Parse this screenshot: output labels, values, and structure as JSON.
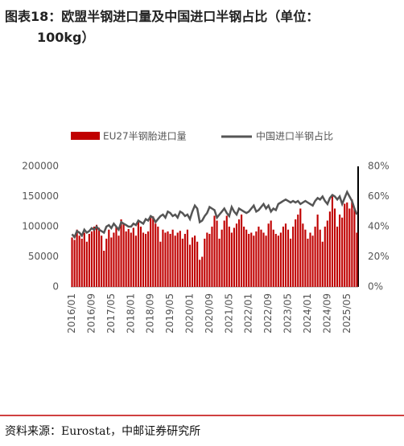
{
  "chart_data": {
    "type": "bar-line",
    "title": [
      "图表18：欧盟半钢进口量及中国进口半钢占比（单位：",
      "100kg）"
    ],
    "source": "资料来源：Eurostat，中邮证券研究所",
    "categories": [
      "2016/01",
      null,
      null,
      null,
      null,
      null,
      null,
      null,
      "2016/09",
      null,
      null,
      null,
      null,
      null,
      null,
      null,
      "2017/05",
      null,
      null,
      null,
      null,
      null,
      null,
      null,
      "2018/01",
      null,
      null,
      null,
      null,
      null,
      null,
      null,
      "2018/09",
      null,
      null,
      null,
      null,
      null,
      null,
      null,
      "2019/05",
      null,
      null,
      null,
      null,
      null,
      null,
      null,
      "2020/01",
      null,
      null,
      null,
      null,
      null,
      null,
      null,
      "2020/09",
      null,
      null,
      null,
      null,
      null,
      null,
      null,
      "2021/05",
      null,
      null,
      null,
      null,
      null,
      null,
      null,
      "2022/01",
      null,
      null,
      null,
      null,
      null,
      null,
      null,
      "2022/09",
      null,
      null,
      null,
      null,
      null,
      null,
      null,
      "2023/05",
      null,
      null,
      null,
      null,
      null,
      null,
      null,
      "2024/01",
      null,
      null,
      null,
      null,
      null,
      null,
      null,
      "2024/09",
      null,
      null,
      null,
      null,
      null,
      null,
      null,
      "2025/05",
      null,
      null,
      null,
      null
    ],
    "series": [
      {
        "name": "EU27半钢胎进口量",
        "color": "#c00000",
        "values": [
          82000,
          78000,
          95000,
          85000,
          80000,
          90000,
          75000,
          88000,
          92000,
          100000,
          103000,
          98000,
          85000,
          60000,
          80000,
          95000,
          82000,
          90000,
          100000,
          85000,
          112000,
          105000,
          92000,
          96000,
          90000,
          98000,
          85000,
          110000,
          100000,
          90000,
          88000,
          92000,
          115000,
          117000,
          105000,
          100000,
          75000,
          95000,
          90000,
          92000,
          88000,
          95000,
          85000,
          90000,
          93000,
          80000,
          88000,
          95000,
          70000,
          82000,
          85000,
          75000,
          45000,
          50000,
          80000,
          90000,
          88000,
          100000,
          118000,
          110000,
          80000,
          95000,
          110000,
          118000,
          100000,
          90000,
          98000,
          105000,
          112000,
          120000,
          100000,
          95000,
          88000,
          90000,
          85000,
          92000,
          100000,
          95000,
          90000,
          85000,
          105000,
          110000,
          95000,
          88000,
          85000,
          90000,
          100000,
          105000,
          95000,
          80000,
          100000,
          112000,
          120000,
          130000,
          105000,
          95000,
          80000,
          90000,
          85000,
          100000,
          120000,
          95000,
          75000,
          100000,
          110000,
          125000,
          150000,
          130000,
          100000,
          120000,
          115000,
          138000,
          140000,
          130000,
          145000,
          130000,
          90000
        ]
      },
      {
        "name": "中国进口半钢占比",
        "color": "#555555",
        "axis": "y2",
        "values": [
          35,
          33,
          37,
          36,
          34,
          38,
          36,
          37,
          39,
          38,
          40,
          38,
          37,
          36,
          40,
          41,
          39,
          42,
          40,
          38,
          43,
          42,
          41,
          40,
          40,
          42,
          41,
          44,
          43,
          42,
          45,
          44,
          47,
          46,
          43,
          45,
          47,
          48,
          46,
          50,
          49,
          47,
          48,
          46,
          50,
          49,
          47,
          48,
          45,
          50,
          54,
          52,
          43,
          44,
          47,
          49,
          53,
          52,
          51,
          46,
          48,
          50,
          52,
          49,
          47,
          53,
          50,
          48,
          52,
          51,
          50,
          49,
          50,
          52,
          54,
          50,
          51,
          53,
          55,
          52,
          54,
          50,
          52,
          51,
          55,
          56,
          57,
          58,
          57,
          56,
          57,
          56,
          57,
          55,
          56,
          57,
          56,
          55,
          54,
          57,
          59,
          58,
          60,
          57,
          55,
          59,
          61,
          60,
          58,
          60,
          55,
          59,
          63,
          60,
          57,
          52,
          48
        ]
      }
    ],
    "ylim": [
      0,
      200000
    ],
    "yticks": [
      0,
      50000,
      100000,
      150000,
      200000
    ],
    "y2lim": [
      0,
      80
    ],
    "y2ticks": [
      {
        "value": 0,
        "label": "0%"
      },
      {
        "value": 20,
        "label": "20%"
      },
      {
        "value": 40,
        "label": "40%"
      },
      {
        "value": 60,
        "label": "60%"
      },
      {
        "value": 80,
        "label": "80%"
      }
    ]
  }
}
